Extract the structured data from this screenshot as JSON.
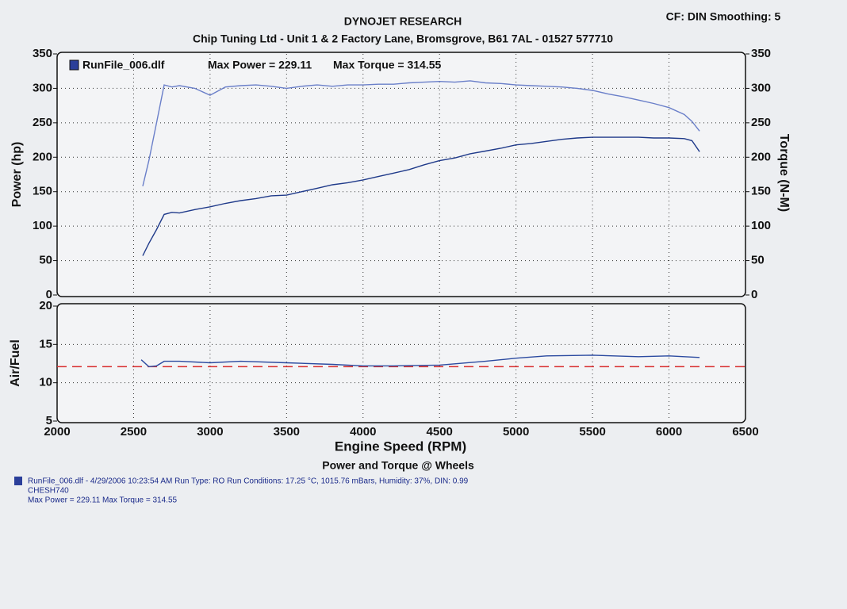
{
  "header": {
    "title": "DYNOJET RESEARCH",
    "subtitle": "Chip Tuning Ltd - Unit 1 & 2 Factory Lane, Bromsgrove, B61 7AL - 01527 577710",
    "settings": "CF: DIN  Smoothing: 5"
  },
  "chart_data": [
    {
      "type": "line",
      "legend": {
        "name": "RunFile_006.dlf",
        "max_power": "Max Power = 229.11",
        "max_torque": "Max Torque = 314.55"
      },
      "ylabel": "Power (hp)",
      "y2label": "Torque (N-M)",
      "x": [
        2560,
        2600,
        2650,
        2700,
        2750,
        2800,
        2900,
        3000,
        3100,
        3200,
        3300,
        3400,
        3500,
        3600,
        3700,
        3800,
        3900,
        4000,
        4100,
        4200,
        4300,
        4400,
        4500,
        4600,
        4700,
        4800,
        4900,
        5000,
        5100,
        5200,
        5300,
        5400,
        5500,
        5600,
        5700,
        5800,
        5900,
        6000,
        6100,
        6150,
        6200
      ],
      "series": [
        {
          "color": "#1f3a8a",
          "values": [
            57,
            75,
            95,
            117,
            120,
            119,
            124,
            128,
            133,
            137,
            140,
            144,
            145,
            150,
            155,
            160,
            163,
            167,
            172,
            177,
            182,
            189,
            195,
            199,
            205,
            209,
            213,
            218,
            220,
            223,
            226,
            228,
            229,
            229,
            229,
            229,
            228,
            228,
            227,
            224,
            208
          ]
        },
        {
          "color": "#6a7fc9",
          "axis": "y2",
          "values": [
            158,
            195,
            250,
            305,
            302,
            304,
            300,
            290,
            302,
            304,
            305,
            303,
            300,
            303,
            305,
            303,
            305,
            305,
            306,
            306,
            308,
            309,
            310,
            309,
            311,
            308,
            307,
            305,
            304,
            303,
            302,
            300,
            297,
            292,
            288,
            283,
            278,
            272,
            262,
            252,
            238
          ]
        }
      ],
      "xlim": [
        2000,
        6500
      ],
      "ylim": [
        0,
        350
      ],
      "yticks": [
        0,
        50,
        100,
        150,
        200,
        250,
        300,
        350
      ],
      "y2lim": [
        0,
        350
      ],
      "y2ticks": [
        0,
        50,
        100,
        150,
        200,
        250,
        300,
        350
      ],
      "grid": true
    },
    {
      "type": "line",
      "ylabel": "Air/Fuel",
      "xlabel": "Engine Speed (RPM)",
      "caption": "Power and Torque @ Wheels",
      "x": [
        2550,
        2600,
        2650,
        2700,
        2800,
        3000,
        3200,
        3500,
        3800,
        4000,
        4200,
        4500,
        4800,
        5000,
        5200,
        5500,
        5800,
        6000,
        6200
      ],
      "series": [
        {
          "color": "#2b4aa0",
          "values": [
            13.0,
            12.1,
            12.2,
            12.8,
            12.8,
            12.6,
            12.8,
            12.6,
            12.4,
            12.2,
            12.2,
            12.3,
            12.8,
            13.2,
            13.5,
            13.6,
            13.4,
            13.5,
            13.3
          ]
        }
      ],
      "reference_line": {
        "value": 12.1,
        "color": "#d93030"
      },
      "xlim": [
        2000,
        6500
      ],
      "xticks": [
        2000,
        2500,
        3000,
        3500,
        4000,
        4500,
        5000,
        5500,
        6000,
        6500
      ],
      "ylim": [
        5,
        20
      ],
      "yticks": [
        5,
        10,
        15,
        20
      ],
      "grid": true
    }
  ],
  "footer": {
    "line1": "RunFile_006.dlf - 4/29/2006 10:23:54 AM  Run Type: RO  Run Conditions: 17.25 °C, 1015.76 mBars,  Humidity:  37%, DIN: 0.99",
    "line2": "CHESH740",
    "line3": "Max Power = 229.11  Max Torque = 314.55"
  }
}
